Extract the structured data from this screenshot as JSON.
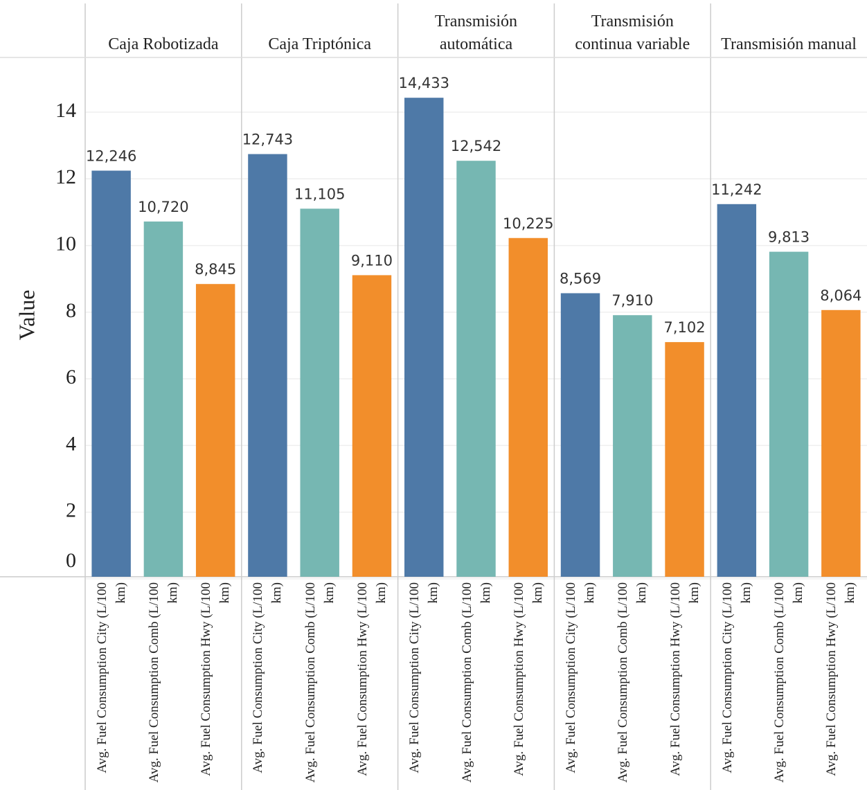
{
  "chart_data": {
    "type": "bar",
    "y_label": "Value",
    "categories": [
      "Caja Robotizada",
      "Caja Triptónica",
      "Transmisión automática",
      "Transmisión continua variable",
      "Transmisión manual"
    ],
    "series": [
      {
        "name": "Avg. Fuel Consumption City (L/100 km)",
        "color": "#4e79a7",
        "values": [
          12.246,
          12.743,
          14.433,
          8.569,
          11.242
        ],
        "value_labels": [
          "12,246",
          "12,743",
          "14,433",
          "8,569",
          "11,242"
        ]
      },
      {
        "name": "Avg. Fuel Consumption Comb (L/100 km)",
        "color": "#76b7b2",
        "values": [
          10.72,
          11.105,
          12.542,
          7.91,
          9.813
        ],
        "value_labels": [
          "10,720",
          "11,105",
          "12,542",
          "7,910",
          "9,813"
        ]
      },
      {
        "name": "Avg. Fuel Consumption Hwy (L/100 km)",
        "color": "#f28e2b",
        "values": [
          8.845,
          9.11,
          10.225,
          7.102,
          8.064
        ],
        "value_labels": [
          "8,845",
          "9,110",
          "10,225",
          "7,102",
          "8,064"
        ]
      }
    ],
    "ylim": [
      0,
      15.6
    ],
    "yticks": [
      0,
      2,
      4,
      6,
      8,
      10,
      12,
      14
    ],
    "grid": true
  }
}
